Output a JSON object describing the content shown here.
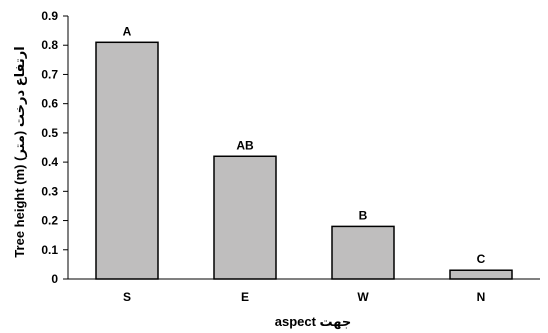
{
  "chart_data": {
    "type": "bar",
    "categories": [
      "S",
      "E",
      "W",
      "N"
    ],
    "values": [
      0.81,
      0.42,
      0.18,
      0.03
    ],
    "bar_labels": [
      "A",
      "AB",
      "B",
      "C"
    ],
    "title": "",
    "xlabel": "جهت aspect",
    "ylabel": "Tree height (m) ارتفاع درخت (متر)",
    "ylim": [
      0,
      0.9
    ],
    "yticks": [
      "0",
      "0.1",
      "0.2",
      "0.3",
      "0.4",
      "0.5",
      "0.6",
      "0.7",
      "0.8",
      "0.9"
    ],
    "grid": false,
    "legend": "none",
    "colors": {
      "bar_fill": "#bfbebe",
      "bar_stroke": "#000000",
      "axis": "#000000",
      "text": "#000000"
    }
  }
}
